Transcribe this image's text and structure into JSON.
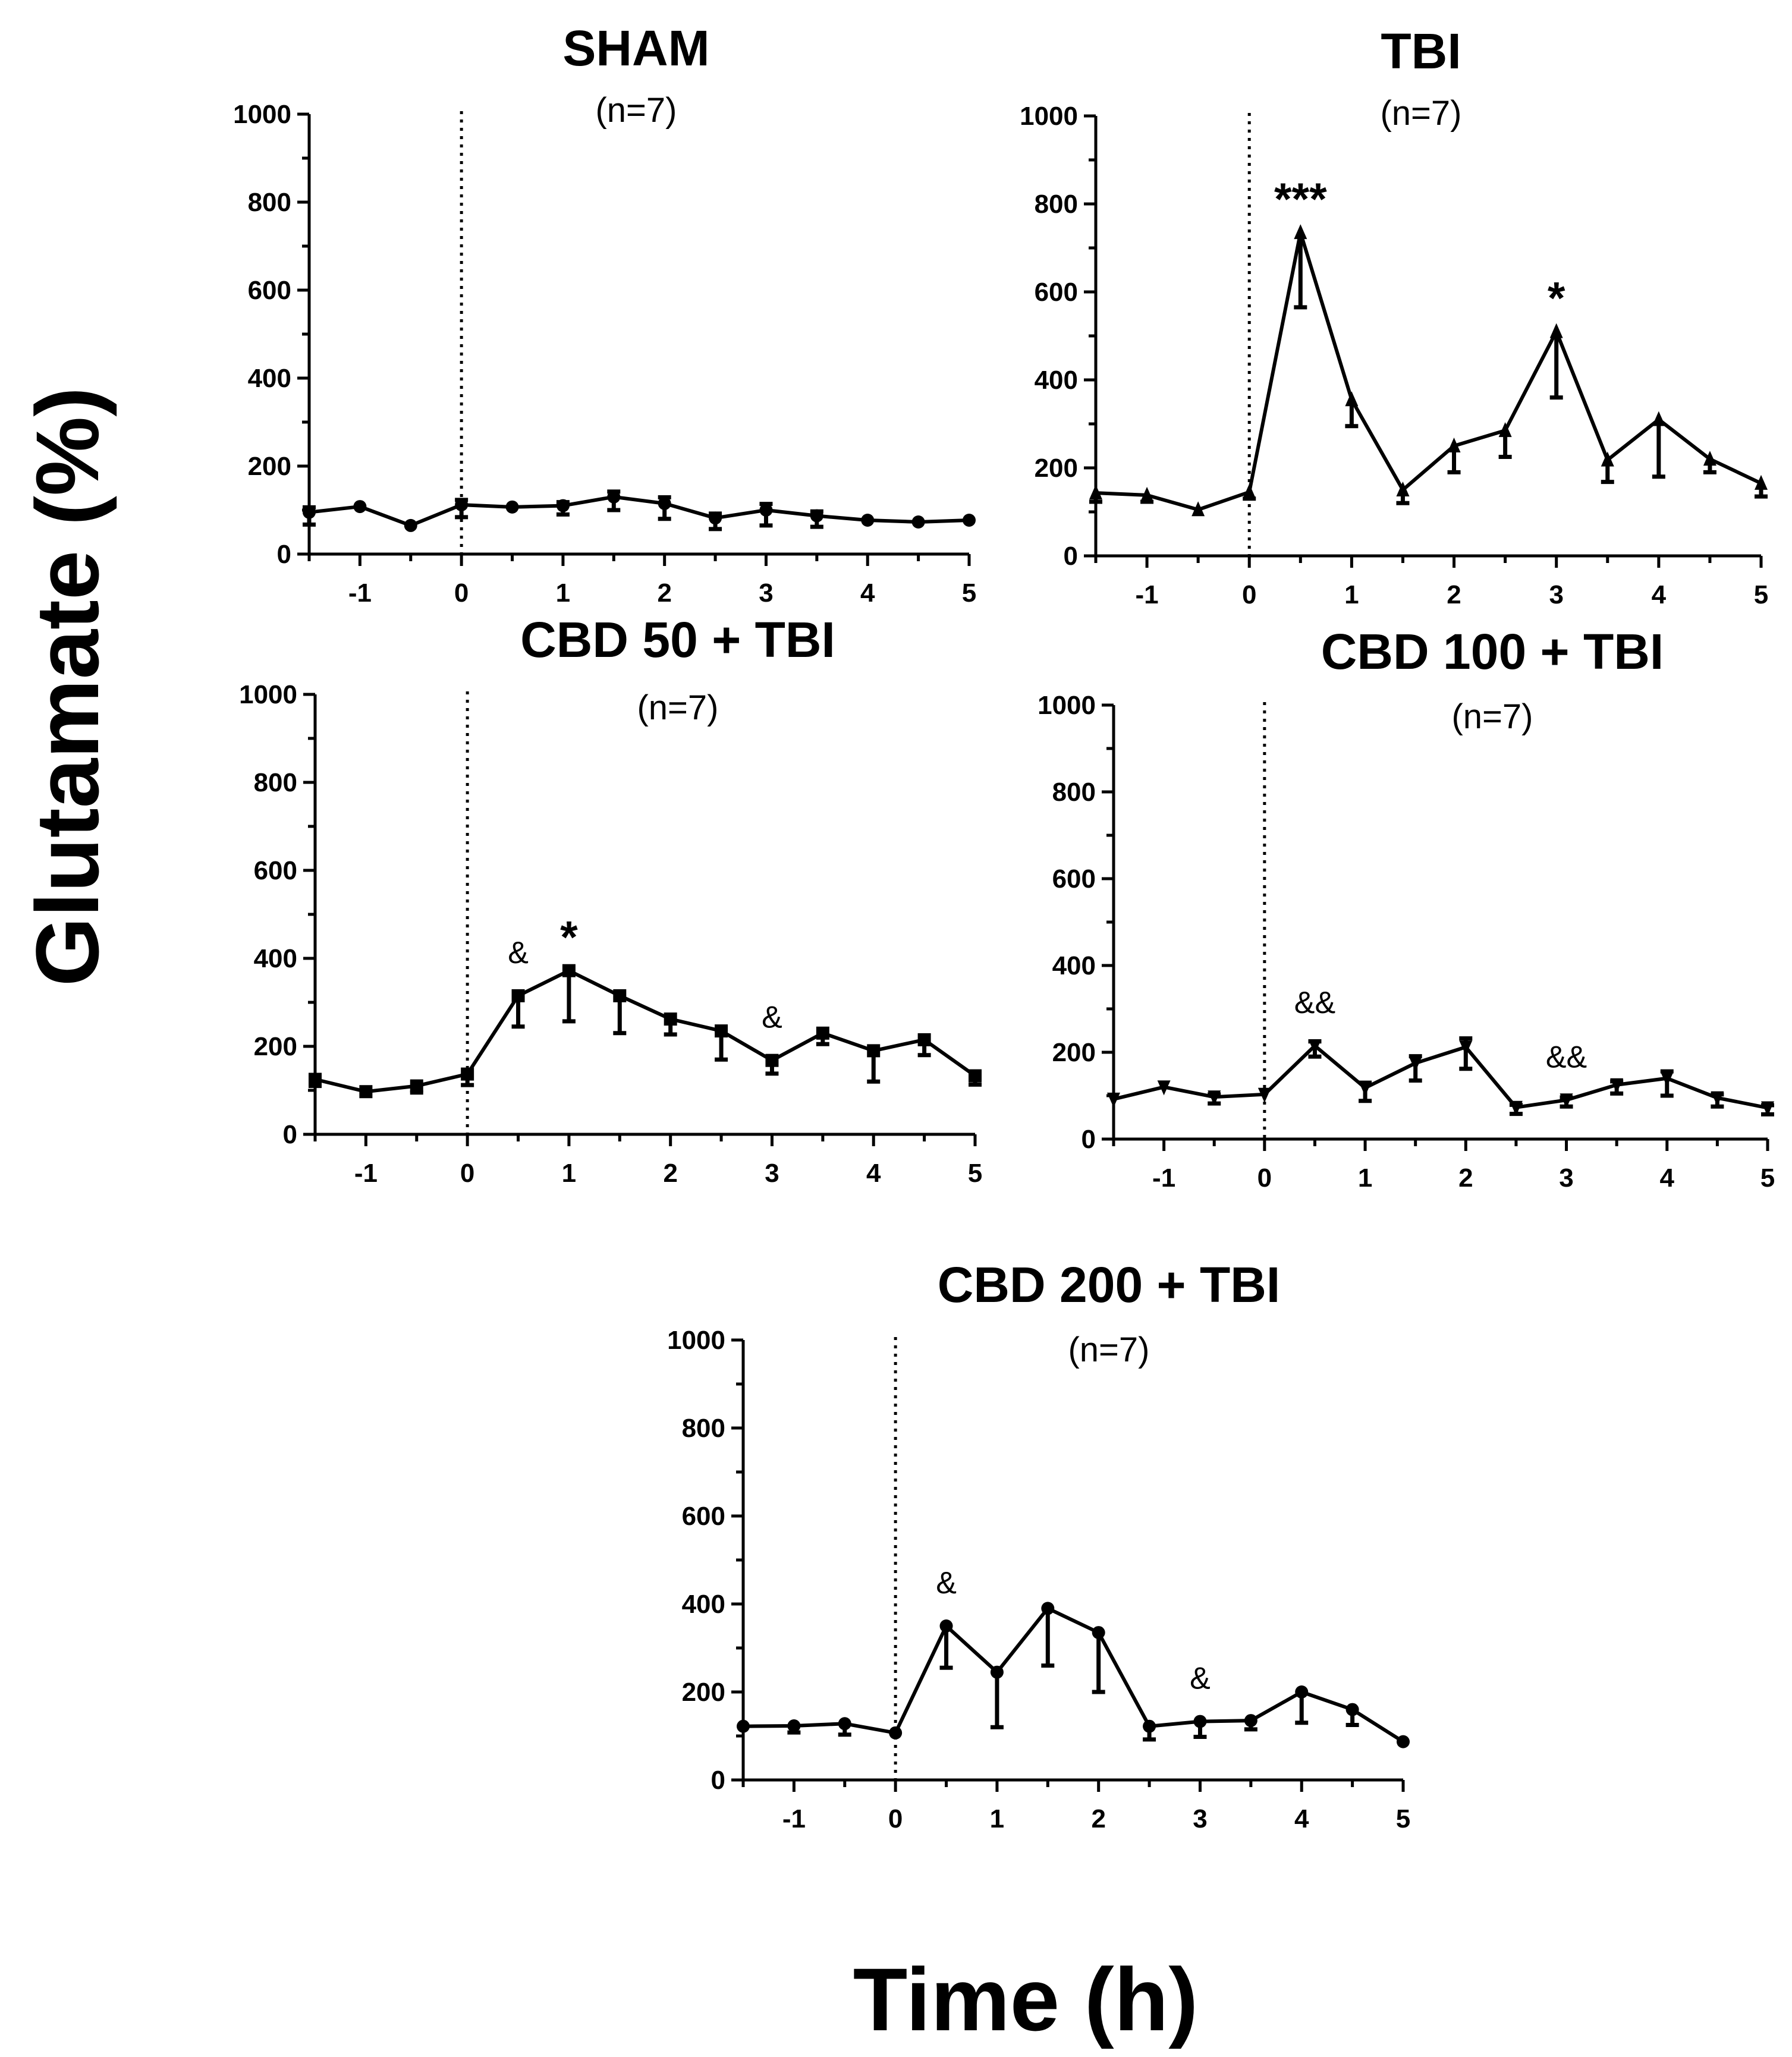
{
  "figure": {
    "ylabel": "Glutamate (%)",
    "xlabel": "Time (h)",
    "line_color": "#000000"
  },
  "chart_data": [
    {
      "type": "line",
      "title": "SHAM",
      "subtitle": "(n=7)",
      "marker": "circle",
      "xlabel": "Time (h)",
      "ylabel": "Glutamate (%)",
      "xlim": [
        -1.5,
        5
      ],
      "ylim": [
        0,
        1000
      ],
      "xticks": [
        "-1",
        "0",
        "1",
        "2",
        "3",
        "4",
        "5"
      ],
      "yticks": [
        "0",
        "200",
        "400",
        "600",
        "800",
        "1000"
      ],
      "injection_time": 0,
      "x": [
        -1.5,
        -1,
        -0.5,
        0,
        0.5,
        1,
        1.5,
        2,
        2.5,
        3,
        3.5,
        4,
        4.5,
        5
      ],
      "y": [
        95,
        108,
        65,
        112,
        107,
        110,
        130,
        115,
        82,
        100,
        87,
        77,
        73,
        77
      ],
      "err": [
        28,
        0,
        0,
        28,
        0,
        20,
        30,
        35,
        25,
        35,
        25,
        0,
        0,
        0
      ],
      "annotations": []
    },
    {
      "type": "line",
      "title": "TBI",
      "subtitle": "(n=7)",
      "marker": "triangle-up",
      "xlabel": "Time (h)",
      "ylabel": "Glutamate (%)",
      "xlim": [
        -1.5,
        5
      ],
      "ylim": [
        0,
        1000
      ],
      "xticks": [
        "-1",
        "0",
        "1",
        "2",
        "3",
        "4",
        "5"
      ],
      "yticks": [
        "0",
        "200",
        "400",
        "600",
        "800",
        "1000"
      ],
      "injection_time": 0,
      "x": [
        -1.5,
        -1,
        -0.5,
        0,
        0.5,
        1,
        1.5,
        2,
        2.5,
        3,
        3.5,
        4,
        4.5,
        5
      ],
      "y": [
        143,
        138,
        105,
        145,
        735,
        355,
        150,
        250,
        285,
        510,
        218,
        310,
        220,
        165
      ],
      "err": [
        20,
        15,
        0,
        15,
        170,
        60,
        30,
        60,
        60,
        150,
        50,
        130,
        30,
        30
      ],
      "annotations": [
        {
          "text": "***",
          "x": 0.5,
          "kind": "star"
        },
        {
          "text": "*",
          "x": 3,
          "kind": "star"
        }
      ]
    },
    {
      "type": "line",
      "title": "CBD 50 + TBI",
      "subtitle": "(n=7)",
      "marker": "square",
      "xlabel": "Time (h)",
      "ylabel": "Glutamate (%)",
      "xlim": [
        -1.5,
        5
      ],
      "ylim": [
        0,
        1000
      ],
      "xticks": [
        "-1",
        "0",
        "1",
        "2",
        "3",
        "4",
        "5"
      ],
      "yticks": [
        "0",
        "200",
        "400",
        "600",
        "800",
        "1000"
      ],
      "injection_time": 0,
      "x": [
        -1.5,
        -1,
        -0.5,
        0,
        0.5,
        1,
        1.5,
        2,
        2.5,
        3,
        3.5,
        4,
        4.5,
        5
      ],
      "y": [
        125,
        97,
        110,
        137,
        315,
        372,
        315,
        262,
        235,
        168,
        230,
        190,
        215,
        133
      ],
      "err": [
        15,
        0,
        15,
        25,
        70,
        115,
        85,
        35,
        65,
        30,
        25,
        70,
        35,
        20
      ],
      "annotations": [
        {
          "text": "&",
          "x": 0.5,
          "kind": "amp"
        },
        {
          "text": "*",
          "x": 1,
          "kind": "star"
        },
        {
          "text": "&",
          "x": 3,
          "kind": "amp"
        }
      ]
    },
    {
      "type": "line",
      "title": "CBD 100 + TBI",
      "subtitle": "(n=7)",
      "marker": "triangle-down",
      "xlabel": "Time (h)",
      "ylabel": "Glutamate (%)",
      "xlim": [
        -1.5,
        5
      ],
      "ylim": [
        0,
        1000
      ],
      "xticks": [
        "-1",
        "0",
        "1",
        "2",
        "3",
        "4",
        "5"
      ],
      "yticks": [
        "0",
        "200",
        "400",
        "600",
        "800",
        "1000"
      ],
      "injection_time": 0,
      "x": [
        -1.5,
        -1,
        -0.5,
        0,
        0.5,
        1,
        1.5,
        2,
        2.5,
        3,
        3.5,
        4,
        4.5,
        5
      ],
      "y": [
        92,
        120,
        97,
        103,
        215,
        118,
        175,
        212,
        73,
        90,
        125,
        140,
        95,
        72
      ],
      "err": [
        0,
        0,
        15,
        0,
        25,
        30,
        40,
        50,
        15,
        15,
        20,
        40,
        20,
        15
      ],
      "annotations": [
        {
          "text": "&&",
          "x": 0.5,
          "kind": "amp"
        },
        {
          "text": "&&",
          "x": 3,
          "kind": "amp"
        }
      ]
    },
    {
      "type": "line",
      "title": "CBD 200 + TBI",
      "subtitle": "(n=7)",
      "marker": "circle",
      "xlabel": "Time (h)",
      "ylabel": "Glutamate (%)",
      "xlim": [
        -1.5,
        5
      ],
      "ylim": [
        0,
        1000
      ],
      "xticks": [
        "-1",
        "0",
        "1",
        "2",
        "3",
        "4",
        "5"
      ],
      "yticks": [
        "0",
        "200",
        "400",
        "600",
        "800",
        "1000"
      ],
      "injection_time": 0,
      "x": [
        -1.5,
        -1,
        -0.5,
        0,
        0.5,
        1,
        1.5,
        2,
        2.5,
        3,
        3.5,
        4,
        4.5,
        5
      ],
      "y": [
        122,
        123,
        128,
        107,
        350,
        245,
        390,
        335,
        122,
        133,
        135,
        200,
        160,
        87
      ],
      "err": [
        0,
        15,
        25,
        0,
        95,
        125,
        130,
        135,
        30,
        35,
        20,
        70,
        35,
        0
      ],
      "annotations": [
        {
          "text": "&",
          "x": 0.5,
          "kind": "amp"
        },
        {
          "text": "&",
          "x": 3,
          "kind": "amp"
        }
      ]
    }
  ]
}
